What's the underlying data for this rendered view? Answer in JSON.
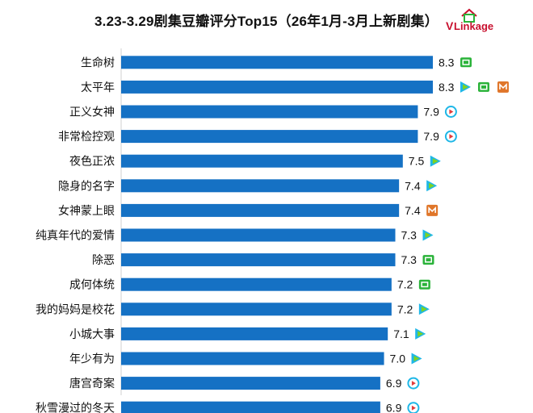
{
  "title": "3.23-3.29剧集豆瓣评分Top15（26年1月-3月上新剧集）",
  "logo": {
    "text_v": "V",
    "text_linkage": "Linkage",
    "mark": "house-logo"
  },
  "colors": {
    "bar": "#1571c4",
    "tencent": "#1fb7e7",
    "iqiyi": "#2bb33a",
    "youku_a": "#1fb7e7",
    "youku_b": "#7ed321",
    "mgtv": "#e0762a"
  },
  "chart_data": {
    "type": "bar",
    "orientation": "horizontal",
    "title": "3.23-3.29剧集豆瓣评分Top15（26年1月-3月上新剧集）",
    "xlabel": "",
    "ylabel": "",
    "grid": false,
    "categories": [
      "生命树",
      "太平年",
      "正义女神",
      "非常检控观",
      "夜色正浓",
      "隐身的名字",
      "女神蒙上眼",
      "纯真年代的爱情",
      "除恶",
      "成何体统",
      "我的妈妈是校花",
      "小城大事",
      "年少有为",
      "唐宫奇案",
      "秋雪漫过的冬天"
    ],
    "values": [
      8.3,
      8.3,
      7.9,
      7.9,
      7.5,
      7.4,
      7.4,
      7.3,
      7.3,
      7.2,
      7.2,
      7.1,
      7.0,
      6.9,
      6.9
    ],
    "value_labels": [
      "8.3",
      "8.3",
      "7.9",
      "7.9",
      "7.5",
      "7.4",
      "7.4",
      "7.3",
      "7.3",
      "7.2",
      "7.2",
      "7.1",
      "7.0",
      "6.9",
      "6.9"
    ],
    "platforms": [
      [
        "iqiyi-icon"
      ],
      [
        "youku-icon",
        "iqiyi-icon",
        "mgtv-icon"
      ],
      [
        "tencent-icon"
      ],
      [
        "tencent-icon"
      ],
      [
        "youku-icon"
      ],
      [
        "youku-icon"
      ],
      [
        "mgtv-icon"
      ],
      [
        "youku-icon"
      ],
      [
        "iqiyi-icon"
      ],
      [
        "iqiyi-icon"
      ],
      [
        "youku-icon"
      ],
      [
        "youku-icon"
      ],
      [
        "youku-icon"
      ],
      [
        "tencent-icon"
      ],
      [
        "tencent-icon"
      ]
    ]
  }
}
